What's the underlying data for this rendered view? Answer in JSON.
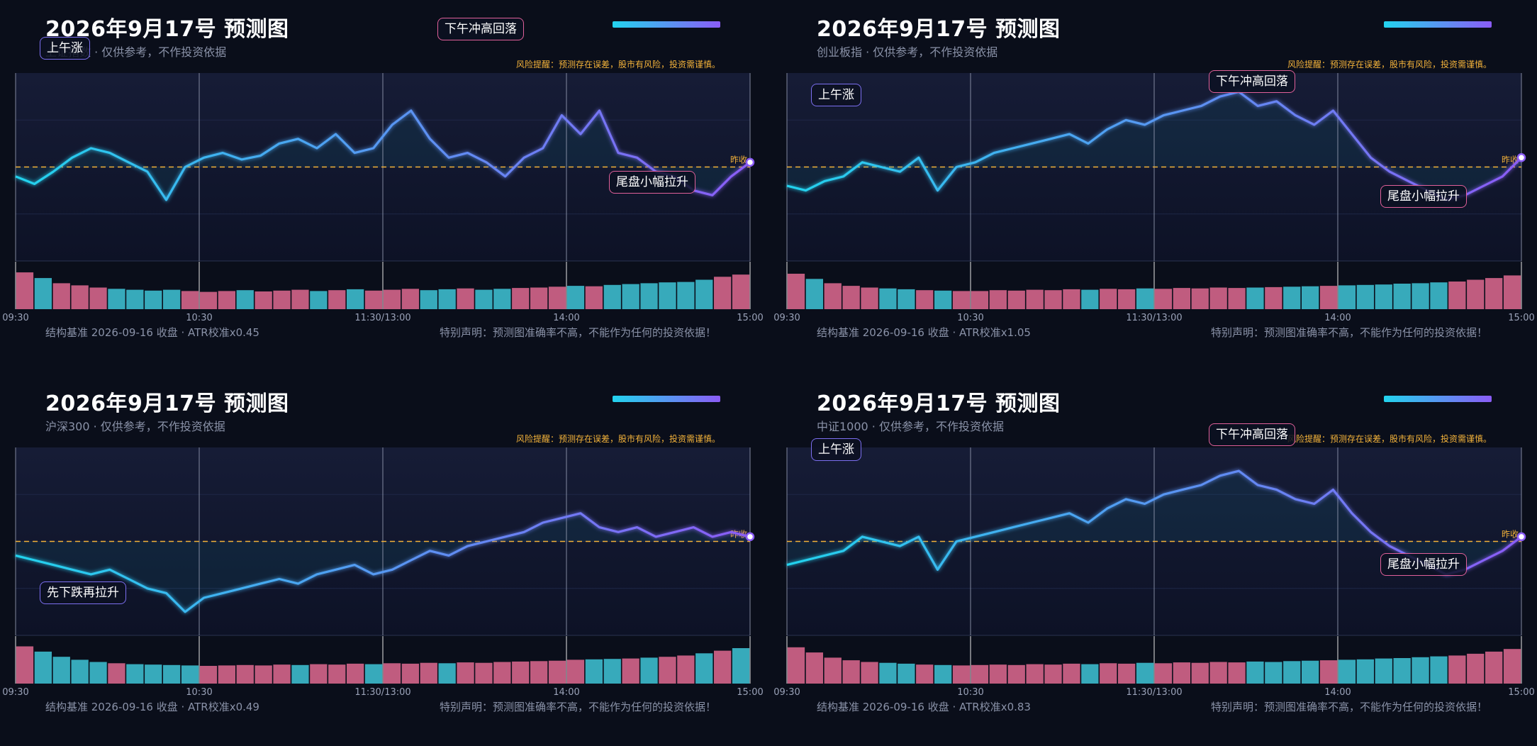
{
  "panels": [
    {
      "title": "2026年9月17号 预测图",
      "subtitle": "上证指数 · 仅供参考，不作投资依据",
      "risk": "风险提醒：预测存在误差，股市有风险，投资需谨慎。",
      "footer_left": "结构基准 2026-09-16 收盘 · ATR校准x0.45",
      "footer_right": "特别声明：预测图准确率不高，不能作为任何的投资依据！",
      "prev_close_label": "昨收",
      "x_ticks": [
        "09:30",
        "10:30",
        "11:30/13:00",
        "14:00",
        "15:00"
      ],
      "annotations": [
        {
          "text": "上午涨",
          "kind": "up"
        },
        {
          "text": "下午冲高回落",
          "kind": "down"
        },
        {
          "text": "尾盘小幅拉升",
          "kind": "down"
        }
      ]
    },
    {
      "title": "2026年9月17号 预测图",
      "subtitle": "创业板指 · 仅供参考，不作投资依据",
      "risk": "风险提醒：预测存在误差，股市有风险，投资需谨慎。",
      "footer_left": "结构基准 2026-09-16 收盘 · ATR校准x1.05",
      "footer_right": "特别声明：预测图准确率不高，不能作为任何的投资依据！",
      "prev_close_label": "昨收",
      "x_ticks": [
        "09:30",
        "10:30",
        "11:30/13:00",
        "14:00",
        "15:00"
      ],
      "annotations": [
        {
          "text": "上午涨",
          "kind": "up"
        },
        {
          "text": "下午冲高回落",
          "kind": "down"
        },
        {
          "text": "尾盘小幅拉升",
          "kind": "down"
        }
      ]
    },
    {
      "title": "2026年9月17号 预测图",
      "subtitle": "沪深300 · 仅供参考，不作投资依据",
      "risk": "风险提醒：预测存在误差，股市有风险，投资需谨慎。",
      "footer_left": "结构基准 2026-09-16 收盘 · ATR校准x0.49",
      "footer_right": "特别声明：预测图准确率不高，不能作为任何的投资依据！",
      "prev_close_label": "昨收",
      "x_ticks": [
        "09:30",
        "10:30",
        "11:30/13:00",
        "14:00",
        "15:00"
      ],
      "annotations": [
        {
          "text": "先下跌再拉升",
          "kind": "up"
        }
      ]
    },
    {
      "title": "2026年9月17号 预测图",
      "subtitle": "中证1000 · 仅供参考，不作投资依据",
      "risk": "风险提醒：预测存在误差，股市有风险，投资需谨慎。",
      "footer_left": "结构基准 2026-09-16 收盘 · ATR校准x0.83",
      "footer_right": "特别声明：预测图准确率不高，不能作为任何的投资依据！",
      "prev_close_label": "昨收",
      "x_ticks": [
        "09:30",
        "10:30",
        "11:30/13:00",
        "14:00",
        "15:00"
      ],
      "annotations": [
        {
          "text": "上午涨",
          "kind": "up"
        },
        {
          "text": "下午冲高回落",
          "kind": "down"
        },
        {
          "text": "尾盘小幅拉升",
          "kind": "down"
        }
      ]
    }
  ],
  "colors": {
    "line_start": "#22d3ee",
    "line_end": "#8b5cf6",
    "prev_close": "#f3b23a",
    "vol_up": "#e06a92",
    "vol_down": "#3fc6d8",
    "risk": "#f3b23a"
  },
  "chart_data": [
    {
      "type": "line",
      "x_ticks": [
        "09:30",
        "10:30",
        "11:30/13:00",
        "14:00",
        "15:00"
      ],
      "ylim": [
        -1,
        1
      ],
      "prev_close": 0,
      "series": [
        {
          "values": [
            -0.1,
            -0.18,
            -0.05,
            0.1,
            0.2,
            0.15,
            0.05,
            -0.05,
            -0.35,
            0.0,
            0.1,
            0.15,
            0.08,
            0.12,
            0.25,
            0.3,
            0.2,
            0.35,
            0.15,
            0.2,
            0.45,
            0.6,
            0.3,
            0.1,
            0.15,
            0.05,
            -0.1,
            0.1,
            0.2,
            0.55,
            0.35,
            0.6,
            0.15,
            0.1,
            -0.05,
            -0.1,
            -0.25,
            -0.3,
            -0.1,
            0.05
          ]
        }
      ],
      "volume": [
        0.85,
        0.72,
        0.6,
        0.55,
        0.5,
        0.47,
        0.45,
        0.43,
        0.45,
        0.42,
        0.4,
        0.42,
        0.44,
        0.41,
        0.43,
        0.45,
        0.42,
        0.44,
        0.46,
        0.43,
        0.45,
        0.47,
        0.44,
        0.46,
        0.48,
        0.45,
        0.47,
        0.49,
        0.5,
        0.52,
        0.54,
        0.53,
        0.56,
        0.58,
        0.6,
        0.62,
        0.63,
        0.68,
        0.75,
        0.8
      ]
    },
    {
      "type": "line",
      "x_ticks": [
        "09:30",
        "10:30",
        "11:30/13:00",
        "14:00",
        "15:00"
      ],
      "ylim": [
        -1,
        1
      ],
      "prev_close": 0,
      "series": [
        {
          "values": [
            -0.2,
            -0.25,
            -0.15,
            -0.1,
            0.05,
            0.0,
            -0.05,
            0.1,
            -0.25,
            0.0,
            0.05,
            0.15,
            0.2,
            0.25,
            0.3,
            0.35,
            0.25,
            0.4,
            0.5,
            0.45,
            0.55,
            0.6,
            0.65,
            0.75,
            0.8,
            0.65,
            0.7,
            0.55,
            0.45,
            0.6,
            0.35,
            0.1,
            -0.05,
            -0.15,
            -0.25,
            -0.35,
            -0.3,
            -0.2,
            -0.1,
            0.1
          ]
        }
      ],
      "volume": [
        0.82,
        0.7,
        0.6,
        0.54,
        0.5,
        0.48,
        0.46,
        0.44,
        0.43,
        0.42,
        0.42,
        0.44,
        0.43,
        0.45,
        0.44,
        0.46,
        0.45,
        0.47,
        0.46,
        0.48,
        0.47,
        0.49,
        0.48,
        0.5,
        0.49,
        0.5,
        0.51,
        0.52,
        0.53,
        0.54,
        0.55,
        0.56,
        0.57,
        0.59,
        0.6,
        0.62,
        0.64,
        0.68,
        0.72,
        0.78
      ]
    },
    {
      "type": "line",
      "x_ticks": [
        "09:30",
        "10:30",
        "11:30/13:00",
        "14:00",
        "15:00"
      ],
      "ylim": [
        -1,
        1
      ],
      "prev_close": 0,
      "series": [
        {
          "values": [
            -0.15,
            -0.2,
            -0.25,
            -0.3,
            -0.35,
            -0.3,
            -0.4,
            -0.5,
            -0.55,
            -0.75,
            -0.6,
            -0.55,
            -0.5,
            -0.45,
            -0.4,
            -0.45,
            -0.35,
            -0.3,
            -0.25,
            -0.35,
            -0.3,
            -0.2,
            -0.1,
            -0.15,
            -0.05,
            0.0,
            0.05,
            0.1,
            0.2,
            0.25,
            0.3,
            0.15,
            0.1,
            0.15,
            0.05,
            0.1,
            0.15,
            0.05,
            0.1,
            0.05
          ]
        }
      ],
      "volume": [
        0.86,
        0.74,
        0.62,
        0.55,
        0.5,
        0.47,
        0.45,
        0.44,
        0.43,
        0.42,
        0.41,
        0.42,
        0.43,
        0.42,
        0.44,
        0.43,
        0.45,
        0.44,
        0.46,
        0.45,
        0.47,
        0.46,
        0.48,
        0.47,
        0.49,
        0.48,
        0.5,
        0.51,
        0.52,
        0.53,
        0.55,
        0.56,
        0.57,
        0.58,
        0.6,
        0.62,
        0.65,
        0.7,
        0.76,
        0.82
      ]
    },
    {
      "type": "line",
      "x_ticks": [
        "09:30",
        "10:30",
        "11:30/13:00",
        "14:00",
        "15:00"
      ],
      "ylim": [
        -1,
        1
      ],
      "prev_close": 0,
      "series": [
        {
          "values": [
            -0.25,
            -0.2,
            -0.15,
            -0.1,
            0.05,
            0.0,
            -0.05,
            0.05,
            -0.3,
            0.0,
            0.05,
            0.1,
            0.15,
            0.2,
            0.25,
            0.3,
            0.2,
            0.35,
            0.45,
            0.4,
            0.5,
            0.55,
            0.6,
            0.7,
            0.75,
            0.6,
            0.55,
            0.45,
            0.4,
            0.55,
            0.3,
            0.1,
            -0.05,
            -0.15,
            -0.25,
            -0.35,
            -0.3,
            -0.2,
            -0.1,
            0.05
          ]
        }
      ],
      "volume": [
        0.84,
        0.72,
        0.6,
        0.54,
        0.5,
        0.48,
        0.46,
        0.44,
        0.43,
        0.42,
        0.43,
        0.44,
        0.43,
        0.45,
        0.44,
        0.46,
        0.45,
        0.47,
        0.46,
        0.48,
        0.47,
        0.49,
        0.48,
        0.5,
        0.49,
        0.51,
        0.5,
        0.52,
        0.53,
        0.54,
        0.55,
        0.56,
        0.58,
        0.59,
        0.61,
        0.63,
        0.65,
        0.69,
        0.74,
        0.8
      ]
    }
  ]
}
